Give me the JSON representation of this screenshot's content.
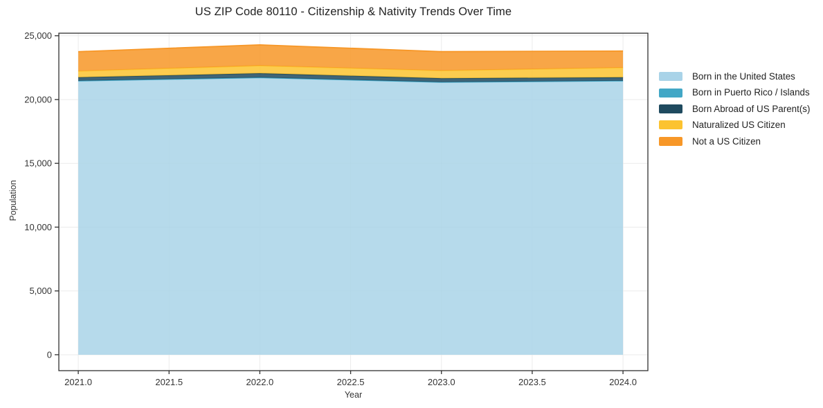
{
  "title": "US ZIP Code 80110 - Citizenship & Nativity Trends Over Time",
  "chart_data": {
    "type": "area",
    "stacked": true,
    "title": "US ZIP Code 80110 - Citizenship & Nativity Trends Over Time",
    "xlabel": "Year",
    "ylabel": "Population",
    "x": [
      2021,
      2022,
      2023,
      2024
    ],
    "series": [
      {
        "name": "Born in the United States",
        "color": "#a9d3e8",
        "values": [
          21450,
          21700,
          21350,
          21450
        ]
      },
      {
        "name": "Born in Puerto Rico / Islands",
        "color": "#42a7c6",
        "values": [
          20,
          25,
          15,
          20
        ]
      },
      {
        "name": "Born Abroad of US Parent(s)",
        "color": "#1f4a5f",
        "values": [
          270,
          330,
          300,
          270
        ]
      },
      {
        "name": "Naturalized US Citizen",
        "color": "#fcc330",
        "values": [
          490,
          600,
          600,
          760
        ]
      },
      {
        "name": "Not a US Citizen",
        "color": "#f79727",
        "values": [
          1520,
          1630,
          1490,
          1300
        ]
      }
    ],
    "totals": [
      23750,
      24285,
      23755,
      23800
    ],
    "xticks": [
      2021.0,
      2021.5,
      2022.0,
      2022.5,
      2023.0,
      2023.5,
      2024.0
    ],
    "xtick_labels": [
      "2021.0",
      "2021.5",
      "2022.0",
      "2022.5",
      "2023.0",
      "2023.5",
      "2024.0"
    ],
    "yticks": [
      0,
      5000,
      10000,
      15000,
      20000,
      25000
    ],
    "ytick_labels": [
      "0",
      "5,000",
      "10,000",
      "15,000",
      "20,000",
      "25,000"
    ],
    "xlim": [
      2020.893,
      2024.137
    ],
    "ylim": [
      -1250,
      25200
    ],
    "grid": true,
    "legend_position": "right-outside",
    "fill_opacity": 0.85,
    "colors": {
      "axis": "#2f2f2f",
      "grid": "#ebebeb",
      "tick_label": "#333333",
      "background": "#ffffff"
    }
  }
}
